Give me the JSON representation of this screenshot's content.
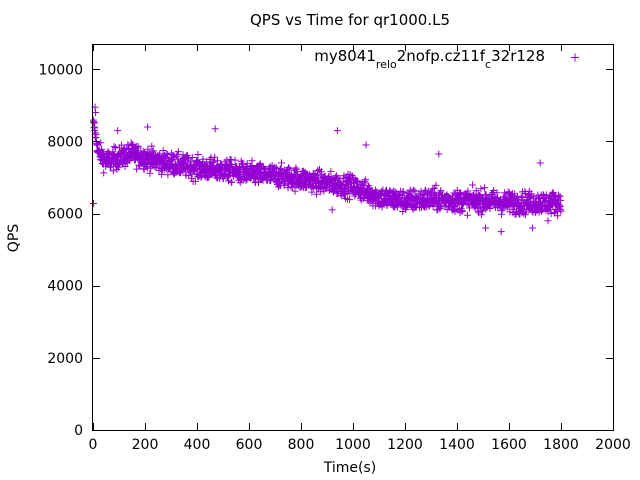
{
  "chart_data": {
    "type": "scatter",
    "title": "QPS vs Time for qr1000.L5",
    "xlabel": "Time(s)",
    "ylabel": "QPS",
    "xlim": [
      0,
      2000
    ],
    "ylim": [
      0,
      10700
    ],
    "x_ticks": [
      0,
      200,
      400,
      600,
      800,
      1000,
      1200,
      1400,
      1600,
      1800,
      2000
    ],
    "y_ticks": [
      0,
      2000,
      4000,
      6000,
      8000,
      10000
    ],
    "grid": false,
    "legend_position": "top-right",
    "marker": "plus",
    "series": [
      {
        "name": "my8041_rel_o2nofp.cz11f_c32r128",
        "legend_parts": [
          {
            "text": "my8041",
            "sub": false
          },
          {
            "text": "rel",
            "sub": true
          },
          {
            "text": "o",
            "sub": true
          },
          {
            "text": "2nofp.cz11f",
            "sub": false
          },
          {
            "text": "c",
            "sub": true
          },
          {
            "text": "32r128",
            "sub": false
          }
        ],
        "color": "#9400d3",
        "sample_interval_s": 1,
        "x_start": 1,
        "x_end": 1800,
        "trend_knots": [
          [
            1,
            8500
          ],
          [
            5,
            8400
          ],
          [
            20,
            7700
          ],
          [
            50,
            7450
          ],
          [
            150,
            7650
          ],
          [
            250,
            7450
          ],
          [
            400,
            7250
          ],
          [
            500,
            7200
          ],
          [
            600,
            7100
          ],
          [
            700,
            7050
          ],
          [
            800,
            6950
          ],
          [
            900,
            6850
          ],
          [
            1000,
            6750
          ],
          [
            1100,
            6450
          ],
          [
            1200,
            6350
          ],
          [
            1300,
            6400
          ],
          [
            1400,
            6350
          ],
          [
            1500,
            6350
          ],
          [
            1600,
            6300
          ],
          [
            1700,
            6300
          ],
          [
            1800,
            6300
          ]
        ],
        "spread": 520,
        "outlier_points": [
          [
            2,
            6280
          ],
          [
            8,
            8950
          ],
          [
            10,
            8800
          ],
          [
            95,
            8300
          ],
          [
            210,
            8400
          ],
          [
            470,
            8350
          ],
          [
            940,
            8300
          ],
          [
            1050,
            7900
          ],
          [
            1330,
            7650
          ],
          [
            1720,
            7400
          ],
          [
            1510,
            5600
          ],
          [
            1570,
            5500
          ],
          [
            1690,
            5600
          ],
          [
            1750,
            5800
          ],
          [
            920,
            6100
          ]
        ]
      }
    ]
  }
}
